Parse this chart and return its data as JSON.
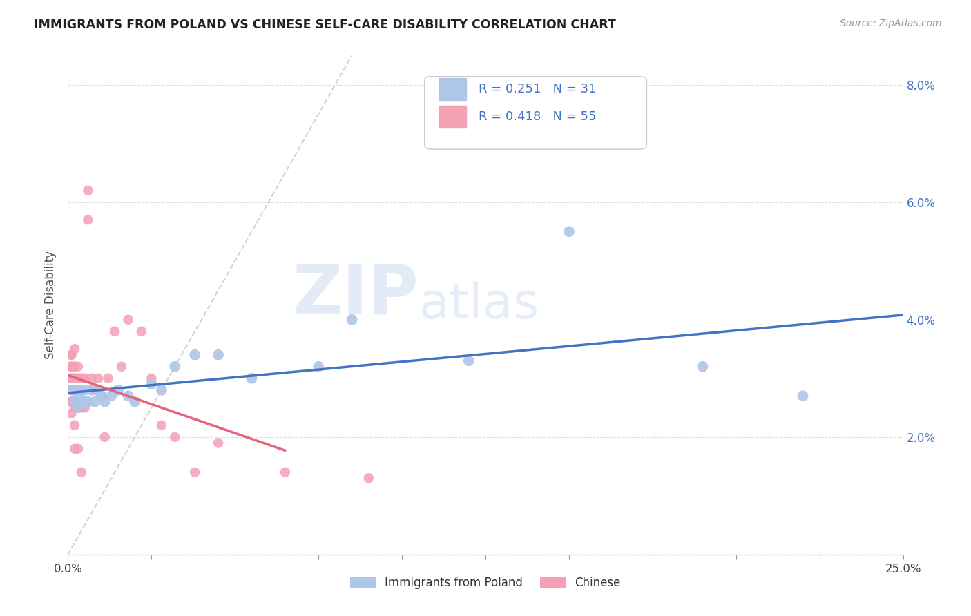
{
  "title": "IMMIGRANTS FROM POLAND VS CHINESE SELF-CARE DISABILITY CORRELATION CHART",
  "source": "Source: ZipAtlas.com",
  "ylabel": "Self-Care Disability",
  "xlim": [
    0,
    0.25
  ],
  "ylim": [
    0,
    0.085
  ],
  "xticks": [
    0.0,
    0.025,
    0.05,
    0.075,
    0.1,
    0.125,
    0.15,
    0.175,
    0.2,
    0.225,
    0.25
  ],
  "xtick_labels_show": [
    "0.0%",
    "",
    "",
    "",
    "",
    "",
    "",
    "",
    "",
    "",
    "25.0%"
  ],
  "yticks_left": [
    0.0,
    0.02,
    0.04,
    0.06,
    0.08
  ],
  "ytick_labels_left": [
    "",
    "",
    "",
    "",
    ""
  ],
  "yticks_right": [
    0.0,
    0.02,
    0.04,
    0.06,
    0.08
  ],
  "ytick_labels_right": [
    "",
    "2.0%",
    "4.0%",
    "6.0%",
    "8.0%"
  ],
  "color_poland": "#aec6e8",
  "color_chinese": "#f4a0b5",
  "color_line_poland": "#4472c4",
  "color_line_chinese": "#e8637a",
  "color_diag": "#c8c8c8",
  "watermark_zip": "ZIP",
  "watermark_atlas": "atlas",
  "poland_x": [
    0.001,
    0.002,
    0.002,
    0.003,
    0.003,
    0.004,
    0.004,
    0.005,
    0.005,
    0.006,
    0.007,
    0.008,
    0.009,
    0.01,
    0.011,
    0.013,
    0.015,
    0.018,
    0.02,
    0.025,
    0.028,
    0.032,
    0.038,
    0.045,
    0.055,
    0.075,
    0.085,
    0.12,
    0.15,
    0.19,
    0.22
  ],
  "poland_y": [
    0.028,
    0.026,
    0.028,
    0.025,
    0.027,
    0.028,
    0.026,
    0.028,
    0.026,
    0.026,
    0.028,
    0.026,
    0.028,
    0.027,
    0.026,
    0.027,
    0.028,
    0.027,
    0.026,
    0.029,
    0.028,
    0.032,
    0.034,
    0.034,
    0.03,
    0.032,
    0.04,
    0.033,
    0.055,
    0.032,
    0.027
  ],
  "chinese_x": [
    0.001,
    0.001,
    0.001,
    0.001,
    0.001,
    0.001,
    0.001,
    0.001,
    0.001,
    0.001,
    0.001,
    0.001,
    0.001,
    0.001,
    0.001,
    0.002,
    0.002,
    0.002,
    0.002,
    0.002,
    0.002,
    0.002,
    0.002,
    0.002,
    0.002,
    0.002,
    0.003,
    0.003,
    0.003,
    0.003,
    0.003,
    0.004,
    0.004,
    0.004,
    0.005,
    0.005,
    0.006,
    0.006,
    0.007,
    0.008,
    0.009,
    0.01,
    0.011,
    0.012,
    0.014,
    0.016,
    0.018,
    0.022,
    0.025,
    0.028,
    0.032,
    0.038,
    0.045,
    0.065,
    0.09
  ],
  "chinese_y": [
    0.03,
    0.03,
    0.028,
    0.032,
    0.028,
    0.026,
    0.034,
    0.03,
    0.028,
    0.032,
    0.026,
    0.034,
    0.028,
    0.032,
    0.024,
    0.032,
    0.03,
    0.028,
    0.035,
    0.032,
    0.03,
    0.028,
    0.025,
    0.03,
    0.022,
    0.018,
    0.03,
    0.028,
    0.032,
    0.025,
    0.018,
    0.03,
    0.025,
    0.014,
    0.03,
    0.025,
    0.062,
    0.057,
    0.03,
    0.028,
    0.03,
    0.027,
    0.02,
    0.03,
    0.038,
    0.032,
    0.04,
    0.038,
    0.03,
    0.022,
    0.02,
    0.014,
    0.019,
    0.014,
    0.013
  ],
  "legend_text1": "R = 0.251   N = 31",
  "legend_text2": "R = 0.418   N = 55",
  "legend_color1": "#4472c4",
  "bottom_legend1": "Immigrants from Poland",
  "bottom_legend2": "Chinese"
}
